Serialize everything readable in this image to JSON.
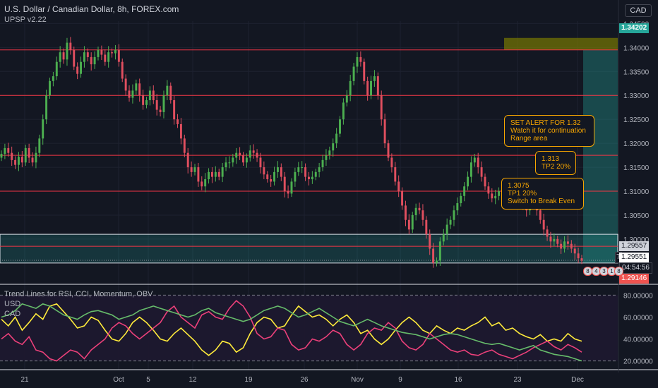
{
  "header": {
    "title": "U.S. Dollar / Canadian Dollar, 8h, FOREX.com",
    "indicator": "UPSP v2.22",
    "currency": "CAD"
  },
  "oscillator": {
    "title": "Trend Lines for RSI, CCI, Momentum, OBV",
    "series_labels": [
      "USD",
      "CAD"
    ]
  },
  "notes": {
    "alert": "SET ALERT FOR 1.32\nWatch it for continuation\nRange area",
    "tp2": "1.313\nTP2 20%",
    "tp1": "1.3075\nTP1 20%\nSwitch to Break Even"
  },
  "price_labels": {
    "target": "1.34202",
    "current": "1.29557",
    "bid": "1.29551",
    "countdown": "04:54:56",
    "stop": "1.29146",
    "small_marker": "7"
  },
  "badges": [
    "8",
    "4",
    "3",
    "1",
    "8"
  ],
  "colors": {
    "background": "#131722",
    "grid": "#1e2230",
    "up": "#4caf50",
    "down": "#e04f5f",
    "level_line": "#f23645",
    "zone": "#26a69a",
    "target_zone": "#808000",
    "usd_line": "#ffeb3b",
    "cad_line": "#ec407a",
    "third_line": "#66bb6a",
    "osc_bg": "#1e1830"
  },
  "chart_data": [
    {
      "type": "candlestick",
      "title": "U.S. Dollar / Canadian Dollar, 8h, FOREX.com",
      "x_ticks": [
        "21",
        "Oct",
        "5",
        "12",
        "19",
        "26",
        "Nov",
        "9",
        "16",
        "23",
        "Dec"
      ],
      "y_ticks": [
        "1.34500",
        "1.34000",
        "1.33500",
        "1.33000",
        "1.32500",
        "1.32000",
        "1.31500",
        "1.31000",
        "1.30500",
        "1.30000",
        "1.29500"
      ],
      "ylim": [
        1.291,
        1.3455
      ],
      "horizontal_levels": [
        1.3395,
        1.33,
        1.3175,
        1.31,
        1.2985
      ],
      "support_zone": [
        1.295,
        1.301
      ],
      "target_zone": [
        1.3395,
        1.342
      ],
      "close": [
        1.3178,
        1.319,
        1.318,
        1.3165,
        1.3155,
        1.3172,
        1.316,
        1.319,
        1.317,
        1.316,
        1.318,
        1.321,
        1.325,
        1.33,
        1.333,
        1.334,
        1.337,
        1.339,
        1.3375,
        1.341,
        1.3395,
        1.336,
        1.3345,
        1.337,
        1.339,
        1.338,
        1.3365,
        1.338,
        1.3395,
        1.3385,
        1.337,
        1.339,
        1.3388,
        1.3395,
        1.337,
        1.3335,
        1.331,
        1.3295,
        1.331,
        1.3325,
        1.33,
        1.328,
        1.329,
        1.331,
        1.329,
        1.327,
        1.3265,
        1.33,
        1.332,
        1.329,
        1.325,
        1.324,
        1.321,
        1.318,
        1.315,
        1.314,
        1.315,
        1.312,
        1.311,
        1.3125,
        1.314,
        1.313,
        1.314,
        1.313,
        1.315,
        1.316,
        1.316,
        1.317,
        1.318,
        1.3175,
        1.316,
        1.317,
        1.3185,
        1.318,
        1.317,
        1.315,
        1.3135,
        1.3125,
        1.312,
        1.314,
        1.315,
        1.313,
        1.31,
        1.3095,
        1.312,
        1.314,
        1.315,
        1.315,
        1.313,
        1.3125,
        1.313,
        1.314,
        1.315,
        1.3165,
        1.3175,
        1.3185,
        1.32,
        1.322,
        1.325,
        1.3285,
        1.33,
        1.333,
        1.336,
        1.338,
        1.337,
        1.333,
        1.33,
        1.333,
        1.334,
        1.33,
        1.325,
        1.32,
        1.317,
        1.315,
        1.312,
        1.31,
        1.307,
        1.304,
        1.302,
        1.305,
        1.3065,
        1.306,
        1.304,
        1.301,
        1.298,
        1.295,
        1.2955,
        1.2995,
        1.301,
        1.303,
        1.304,
        1.306,
        1.3075,
        1.309,
        1.311,
        1.313,
        1.316,
        1.317,
        1.315,
        1.313,
        1.311,
        1.3095,
        1.3085,
        1.309,
        1.31,
        1.3105,
        1.3095,
        1.309,
        1.3095,
        1.31,
        1.3085,
        1.307,
        1.306,
        1.3075,
        1.309,
        1.306,
        1.304,
        1.302,
        1.3005,
        1.2995,
        1.3,
        1.299,
        1.298,
        1.2995,
        1.299,
        1.298,
        1.297,
        1.296,
        1.2955
      ]
    },
    {
      "type": "line",
      "title": "Trend Lines for RSI, CCI, Momentum, OBV",
      "y_ticks": [
        "80.00000",
        "60.00000",
        "40.00000",
        "20.00000"
      ],
      "ylim": [
        12,
        88
      ],
      "series": [
        {
          "name": "USD",
          "color": "#ffeb3b",
          "values": [
            58,
            52,
            60,
            48,
            55,
            63,
            58,
            70,
            72,
            65,
            58,
            50,
            52,
            60,
            57,
            48,
            40,
            38,
            45,
            55,
            60,
            55,
            48,
            40,
            38,
            45,
            50,
            44,
            38,
            30,
            25,
            30,
            38,
            36,
            28,
            32,
            45,
            55,
            60,
            58,
            50,
            52,
            62,
            70,
            65,
            60,
            62,
            58,
            52,
            58,
            62,
            55,
            45,
            48,
            40,
            35,
            40,
            48,
            55,
            60,
            55,
            48,
            45,
            52,
            48,
            45,
            50,
            48,
            52,
            55,
            60,
            52,
            55,
            48,
            50,
            45,
            42,
            40,
            44,
            38,
            40,
            38,
            45,
            40,
            38
          ]
        },
        {
          "name": "CAD",
          "color": "#ec407a",
          "values": [
            40,
            45,
            38,
            35,
            42,
            30,
            28,
            22,
            20,
            25,
            30,
            28,
            22,
            30,
            35,
            40,
            50,
            55,
            52,
            45,
            40,
            45,
            50,
            55,
            65,
            70,
            60,
            55,
            50,
            62,
            65,
            60,
            58,
            68,
            75,
            70,
            60,
            45,
            40,
            42,
            50,
            48,
            35,
            30,
            32,
            40,
            38,
            42,
            48,
            45,
            35,
            30,
            35,
            45,
            50,
            48,
            55,
            50,
            38,
            32,
            30,
            35,
            45,
            40,
            35,
            30,
            28,
            30,
            26,
            25,
            28,
            30,
            26,
            24,
            22,
            25,
            28,
            32,
            35,
            38,
            33,
            30,
            35,
            32,
            28
          ]
        },
        {
          "name": "",
          "color": "#66bb6a",
          "values": [
            60,
            62,
            66,
            72,
            70,
            68,
            72,
            70,
            66,
            62,
            60,
            58,
            62,
            65,
            66,
            64,
            62,
            58,
            60,
            62,
            66,
            68,
            70,
            68,
            66,
            64,
            62,
            60,
            62,
            66,
            68,
            64,
            62,
            60,
            58,
            56,
            58,
            62,
            66,
            68,
            70,
            68,
            64,
            60,
            62,
            65,
            68,
            64,
            60,
            56,
            54,
            52,
            55,
            58,
            55,
            52,
            50,
            48,
            46,
            45,
            44,
            42,
            40,
            42,
            44,
            45,
            44,
            42,
            40,
            38,
            36,
            35,
            36,
            34,
            32,
            30,
            32,
            34,
            30,
            28,
            26,
            25,
            24,
            22,
            20
          ]
        }
      ]
    }
  ]
}
